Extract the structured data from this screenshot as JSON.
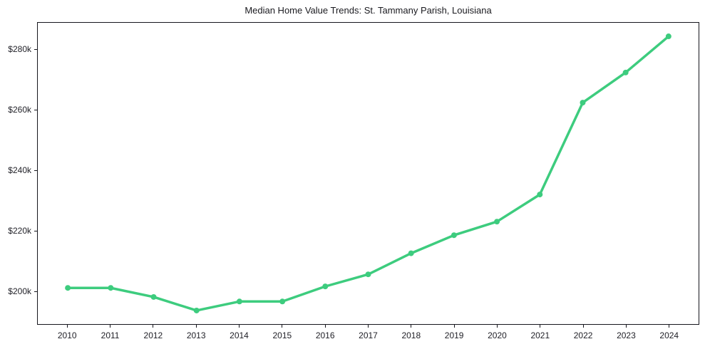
{
  "title": "Median Home Value Trends: St. Tammany Parish, Louisiana",
  "colors": {
    "line": "#3dcc7e",
    "marker": "#3dcc7e",
    "axis": "#16161d",
    "text": "#1f1f26",
    "background": "#ffffff"
  },
  "chart_data": {
    "type": "line",
    "title": "Median Home Value Trends: St. Tammany Parish, Louisiana",
    "series_name": "Median Home Value",
    "x": [
      2010,
      2011,
      2012,
      2013,
      2014,
      2015,
      2016,
      2017,
      2018,
      2019,
      2020,
      2021,
      2022,
      2023,
      2024
    ],
    "values": [
      201000,
      201000,
      198000,
      193500,
      196500,
      196500,
      201500,
      205500,
      212500,
      218500,
      223000,
      232000,
      262500,
      272500,
      284500
    ],
    "xlabel": "",
    "ylabel": "",
    "xlim": [
      2009.3,
      2024.7
    ],
    "ylim": [
      189000,
      289000
    ],
    "yticks": {
      "values": [
        200000,
        220000,
        240000,
        260000,
        280000
      ],
      "labels": [
        "$200k",
        "$220k",
        "$240k",
        "$260k",
        "$280k"
      ]
    },
    "xticks": {
      "values": [
        2010,
        2011,
        2012,
        2013,
        2014,
        2015,
        2016,
        2017,
        2018,
        2019,
        2020,
        2021,
        2022,
        2023,
        2024
      ],
      "labels": [
        "2010",
        "2011",
        "2012",
        "2013",
        "2014",
        "2015",
        "2016",
        "2017",
        "2018",
        "2019",
        "2020",
        "2021",
        "2022",
        "2023",
        "2024"
      ]
    },
    "grid": false,
    "legend": false,
    "marker": "circle",
    "line_color": "#3dcc7e",
    "line_width": 3.5,
    "marker_radius": 4
  }
}
